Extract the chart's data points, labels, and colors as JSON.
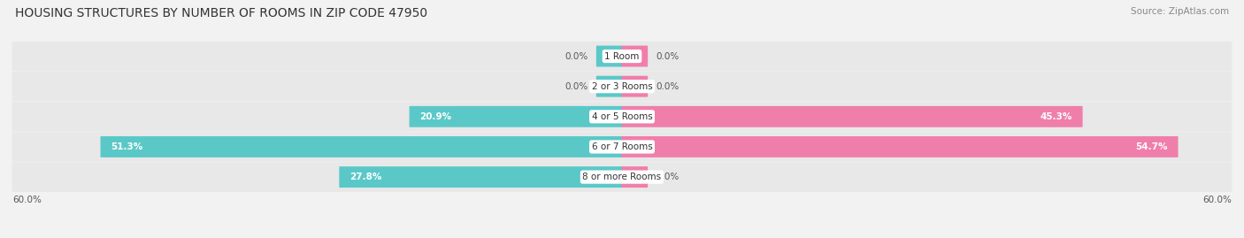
{
  "title": "HOUSING STRUCTURES BY NUMBER OF ROOMS IN ZIP CODE 47950",
  "source": "Source: ZipAtlas.com",
  "categories": [
    "1 Room",
    "2 or 3 Rooms",
    "4 or 5 Rooms",
    "6 or 7 Rooms",
    "8 or more Rooms"
  ],
  "owner_values": [
    0.0,
    0.0,
    20.9,
    51.3,
    27.8
  ],
  "renter_values": [
    0.0,
    0.0,
    45.3,
    54.7,
    0.0
  ],
  "max_val": 60.0,
  "owner_color": "#5bc8c8",
  "renter_color": "#f07eaa",
  "bg_color": "#f2f2f2",
  "row_bg_color": "#e8e8e8",
  "title_fontsize": 10,
  "source_fontsize": 7.5,
  "label_fontsize": 7.5,
  "cat_fontsize": 7.5,
  "axis_label_fontsize": 7.5,
  "legend_fontsize": 8,
  "min_stub": 2.5
}
